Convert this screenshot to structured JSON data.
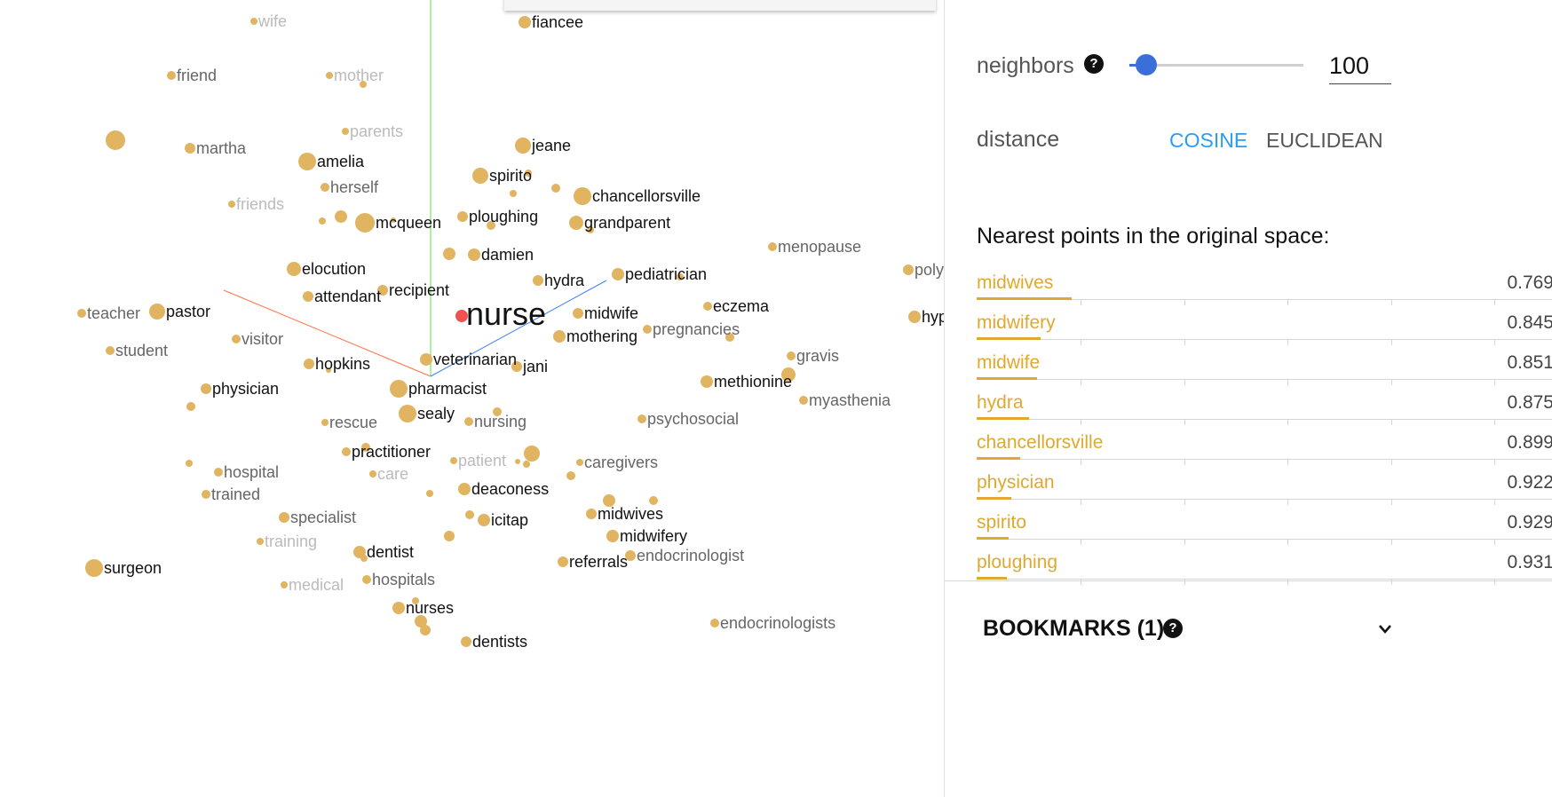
{
  "projector": {
    "center_word": "nurse",
    "points": [
      {
        "label": "wife",
        "tone": "faint"
      },
      {
        "label": "fiancee",
        "tone": "dark"
      },
      {
        "label": "friend",
        "tone": "faded"
      },
      {
        "label": "mother",
        "tone": "faint"
      },
      {
        "label": "parents",
        "tone": "faint"
      },
      {
        "label": "martha",
        "tone": "faded"
      },
      {
        "label": "amelia",
        "tone": "dark"
      },
      {
        "label": "jeane",
        "tone": "dark"
      },
      {
        "label": "spirito",
        "tone": "dark"
      },
      {
        "label": "herself",
        "tone": "faded"
      },
      {
        "label": "chancellorsville",
        "tone": "dark"
      },
      {
        "label": "friends",
        "tone": "faint"
      },
      {
        "label": "mcqueen",
        "tone": "dark"
      },
      {
        "label": "ploughing",
        "tone": "dark"
      },
      {
        "label": "grandparent",
        "tone": "dark"
      },
      {
        "label": "menopause",
        "tone": "faded"
      },
      {
        "label": "damien",
        "tone": "dark"
      },
      {
        "label": "elocution",
        "tone": "dark"
      },
      {
        "label": "hydra",
        "tone": "dark"
      },
      {
        "label": "pediatrician",
        "tone": "dark"
      },
      {
        "label": "poly",
        "tone": "faded"
      },
      {
        "label": "attendant",
        "tone": "dark"
      },
      {
        "label": "recipient",
        "tone": "dark"
      },
      {
        "label": "teacher",
        "tone": "faded"
      },
      {
        "label": "pastor",
        "tone": "dark"
      },
      {
        "label": "midwife",
        "tone": "dark"
      },
      {
        "label": "eczema",
        "tone": "dark"
      },
      {
        "label": "hyp",
        "tone": "dark"
      },
      {
        "label": "mothering",
        "tone": "dark"
      },
      {
        "label": "pregnancies",
        "tone": "faded"
      },
      {
        "label": "visitor",
        "tone": "faded"
      },
      {
        "label": "student",
        "tone": "faded"
      },
      {
        "label": "gravis",
        "tone": "faded"
      },
      {
        "label": "veterinarian",
        "tone": "dark"
      },
      {
        "label": "hopkins",
        "tone": "dark"
      },
      {
        "label": "jani",
        "tone": "dark"
      },
      {
        "label": "methionine",
        "tone": "dark"
      },
      {
        "label": "physician",
        "tone": "dark"
      },
      {
        "label": "pharmacist",
        "tone": "dark"
      },
      {
        "label": "myasthenia",
        "tone": "faded"
      },
      {
        "label": "sealy",
        "tone": "dark"
      },
      {
        "label": "rescue",
        "tone": "faded"
      },
      {
        "label": "nursing",
        "tone": "faded"
      },
      {
        "label": "psychosocial",
        "tone": "faded"
      },
      {
        "label": "practitioner",
        "tone": "dark"
      },
      {
        "label": "patient",
        "tone": "faint"
      },
      {
        "label": "caregivers",
        "tone": "faded"
      },
      {
        "label": "hospital",
        "tone": "faded"
      },
      {
        "label": "care",
        "tone": "faint"
      },
      {
        "label": "deaconess",
        "tone": "dark"
      },
      {
        "label": "trained",
        "tone": "faded"
      },
      {
        "label": "midwives",
        "tone": "dark"
      },
      {
        "label": "specialist",
        "tone": "faded"
      },
      {
        "label": "icitap",
        "tone": "dark"
      },
      {
        "label": "midwifery",
        "tone": "dark"
      },
      {
        "label": "training",
        "tone": "faint"
      },
      {
        "label": "dentist",
        "tone": "dark"
      },
      {
        "label": "endocrinologist",
        "tone": "faded"
      },
      {
        "label": "referrals",
        "tone": "dark"
      },
      {
        "label": "surgeon",
        "tone": "dark"
      },
      {
        "label": "medical",
        "tone": "faint"
      },
      {
        "label": "hospitals",
        "tone": "faded"
      },
      {
        "label": "nurses",
        "tone": "dark"
      },
      {
        "label": "endocrinologists",
        "tone": "faded"
      },
      {
        "label": "dentists",
        "tone": "dark"
      }
    ],
    "colors": {
      "point": "#e0b460",
      "highlight": "#ef5350",
      "axis_x": "#ff7043",
      "axis_y": "#66dd44",
      "axis_z": "#3d7eff"
    }
  },
  "panel": {
    "neighbors": {
      "label": "neighbors",
      "help_icon": "?",
      "value": "100",
      "slider_level_fraction": 0.09
    },
    "distance": {
      "label": "distance",
      "options": [
        {
          "label": "COSINE",
          "selected": true
        },
        {
          "label": "EUCLIDEAN",
          "selected": false
        }
      ]
    },
    "nearest_title": "Nearest points in the original space:",
    "nearest": [
      {
        "word": "midwives",
        "value": "0.769",
        "fraction": 0.165
      },
      {
        "word": "midwifery",
        "value": "0.845",
        "fraction": 0.11
      },
      {
        "word": "midwife",
        "value": "0.851",
        "fraction": 0.105
      },
      {
        "word": "hydra",
        "value": "0.875",
        "fraction": 0.09
      },
      {
        "word": "chancellorsville",
        "value": "0.899",
        "fraction": 0.075
      },
      {
        "word": "physician",
        "value": "0.922",
        "fraction": 0.06
      },
      {
        "word": "spirito",
        "value": "0.929",
        "fraction": 0.055
      },
      {
        "word": "ploughing",
        "value": "0.931",
        "fraction": 0.052
      }
    ],
    "bookmarks": {
      "label": "BOOKMARKS (1)",
      "help_icon": "?",
      "chevron_icon": "chevron-down-icon"
    }
  }
}
